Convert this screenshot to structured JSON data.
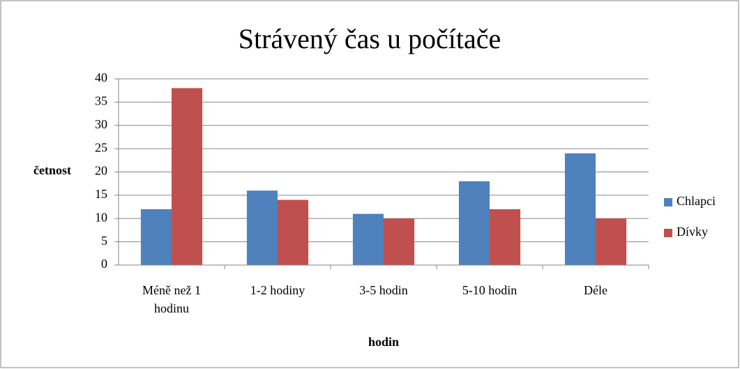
{
  "chart_data": {
    "type": "bar",
    "title": "Strávený čas u počítače",
    "x_label": "hodin",
    "y_label": "četnost",
    "categories": [
      "Méně než 1 hodinu",
      "1-2 hodiny",
      "3-5 hodin",
      "5-10 hodin",
      "Déle"
    ],
    "series": [
      {
        "name": "Chlapci",
        "color": "#4f81bd",
        "values": [
          12,
          16,
          11,
          18,
          24
        ]
      },
      {
        "name": "Dívky",
        "color": "#c0504d",
        "values": [
          38,
          14,
          10,
          12,
          10
        ]
      }
    ],
    "ylim": [
      0,
      40
    ],
    "yticks": [
      0,
      5,
      10,
      15,
      20,
      25,
      30,
      35,
      40
    ],
    "grid": true,
    "legend": "right"
  }
}
